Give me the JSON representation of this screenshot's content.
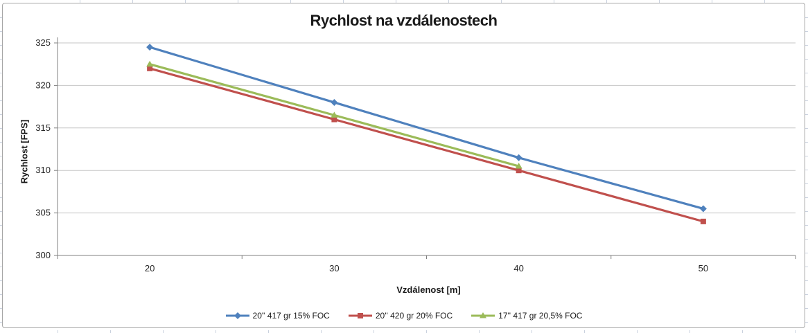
{
  "chart_data": {
    "type": "line",
    "title": "Rychlost na vzdálenostech",
    "xlabel": "Vzdálenost [m]",
    "ylabel": "Rychlost [FPS]",
    "x": [
      20,
      30,
      40,
      50
    ],
    "ylim": [
      300,
      325
    ],
    "ytick_step": 5,
    "yticks": [
      300,
      305,
      310,
      315,
      320,
      325
    ],
    "grid": true,
    "legend_position": "bottom",
    "series": [
      {
        "name": "20'' 417 gr 15% FOC",
        "marker": "diamond",
        "color": "#4F81BD",
        "values": [
          324.5,
          318.0,
          311.5,
          305.5
        ]
      },
      {
        "name": "20'' 420 gr 20% FOC",
        "marker": "square",
        "color": "#C0504D",
        "values": [
          322.0,
          316.0,
          310.0,
          304.0
        ]
      },
      {
        "name": "17'' 417 gr 20,5% FOC",
        "marker": "triangle",
        "color": "#9BBB59",
        "values": [
          322.5,
          316.5,
          310.5,
          null
        ]
      }
    ],
    "axis_color": "#808080",
    "gridline_color": "#c6c6c6",
    "text_color": "#262626"
  }
}
